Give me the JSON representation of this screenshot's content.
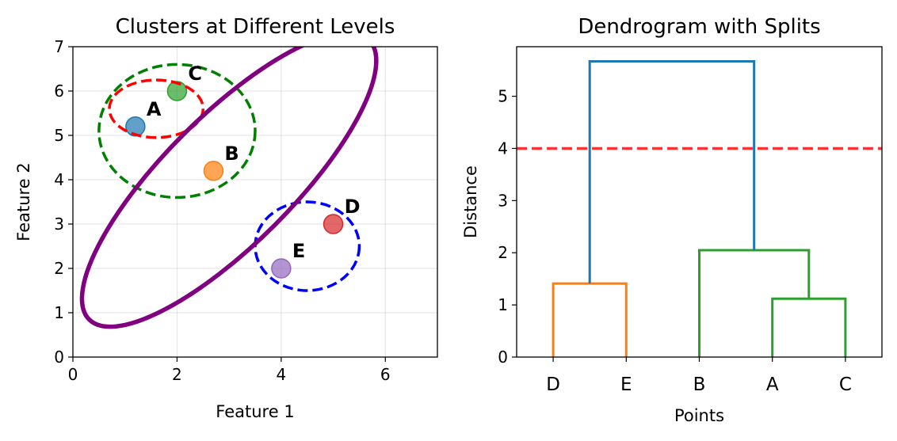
{
  "chart_data": [
    {
      "type": "scatter",
      "title": "Clusters at Different Levels",
      "xlabel": "Feature 1",
      "ylabel": "Feature 2",
      "xlim": [
        0,
        7
      ],
      "ylim": [
        0,
        7
      ],
      "xticks": [
        0,
        2,
        4,
        6
      ],
      "yticks": [
        0,
        1,
        2,
        3,
        4,
        5,
        6,
        7
      ],
      "grid": true,
      "points": [
        {
          "label": "A",
          "x": 1.2,
          "y": 5.2,
          "color": "#1f77b4"
        },
        {
          "label": "B",
          "x": 2.7,
          "y": 4.2,
          "color": "#ff7f0e"
        },
        {
          "label": "C",
          "x": 2.0,
          "y": 6.0,
          "color": "#2ca02c"
        },
        {
          "label": "D",
          "x": 5.0,
          "y": 3.0,
          "color": "#d62728"
        },
        {
          "label": "E",
          "x": 4.0,
          "y": 2.0,
          "color": "#9467bd"
        }
      ],
      "cluster_ellipses": [
        {
          "members": [
            "A",
            "C"
          ],
          "cx": 1.6,
          "cy": 5.6,
          "rx": 0.9,
          "ry": 0.65,
          "angle": 0,
          "color": "#ff0000",
          "style": "dashed"
        },
        {
          "members": [
            "A",
            "B",
            "C"
          ],
          "cx": 2.0,
          "cy": 5.1,
          "rx": 1.5,
          "ry": 1.5,
          "angle": 0,
          "color": "#008000",
          "style": "dashed"
        },
        {
          "members": [
            "D",
            "E"
          ],
          "cx": 4.5,
          "cy": 2.5,
          "rx": 1.0,
          "ry": 1.0,
          "angle": 0,
          "color": "#0000ff",
          "style": "dashed"
        },
        {
          "members": [
            "A",
            "B",
            "C",
            "D",
            "E"
          ],
          "cx": 3.0,
          "cy": 4.0,
          "rx": 3.8,
          "ry": 1.45,
          "angle": -45,
          "color": "#800080",
          "style": "solid"
        }
      ]
    },
    {
      "type": "dendrogram",
      "title": "Dendrogram with Splits",
      "xlabel": "Points",
      "ylabel": "Distance",
      "ylim": [
        0,
        5.95
      ],
      "yticks": [
        0,
        1,
        2,
        3,
        4,
        5
      ],
      "leaves": [
        "D",
        "E",
        "B",
        "A",
        "C"
      ],
      "merges": [
        {
          "left": "A",
          "right": "C",
          "height": 1.12,
          "color": "#2ca02c"
        },
        {
          "left": "D",
          "right": "E",
          "height": 1.41,
          "color": "#ff7f0e"
        },
        {
          "left": "B",
          "right": "AC",
          "height": 2.05,
          "color": "#2ca02c"
        },
        {
          "left": "DE",
          "right": "BAC",
          "height": 5.67,
          "color": "#1f77b4"
        }
      ],
      "cut_line": {
        "y": 4.0,
        "color": "#ff0000",
        "style": "dashed"
      }
    }
  ]
}
